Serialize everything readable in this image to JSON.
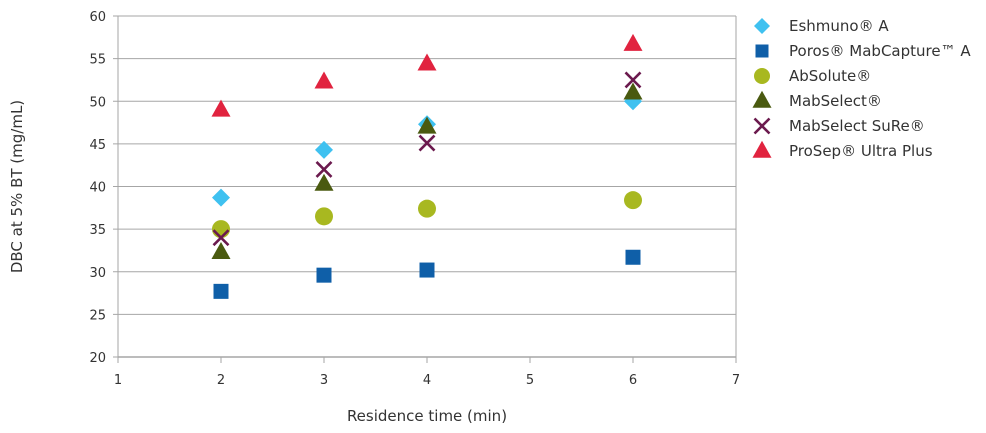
{
  "chart_data": {
    "type": "scatter",
    "xlabel": "Residence time (min)",
    "ylabel": "DBC at 5% BT (mg/mL)",
    "xlim": [
      1,
      7
    ],
    "ylim": [
      20,
      60
    ],
    "x_ticks": [
      "1",
      "2",
      "3",
      "4",
      "5",
      "6",
      "7"
    ],
    "y_ticks": [
      "20",
      "25",
      "30",
      "35",
      "40",
      "45",
      "50",
      "55",
      "60"
    ],
    "grid": "horizontal",
    "legend_position": "right",
    "series": [
      {
        "name": "Eshmuno® A",
        "marker": "diamond",
        "color": "#3fc1f0",
        "points": [
          [
            2,
            38.7
          ],
          [
            3,
            44.3
          ],
          [
            4,
            47.3
          ],
          [
            6,
            50.0
          ]
        ]
      },
      {
        "name": "Poros® MabCapture™ A",
        "marker": "square",
        "color": "#0f5fa8",
        "points": [
          [
            2,
            27.7
          ],
          [
            3,
            29.6
          ],
          [
            4,
            30.2
          ],
          [
            6,
            31.7
          ]
        ]
      },
      {
        "name": "AbSolute®",
        "marker": "circle",
        "color": "#a8b820",
        "points": [
          [
            2,
            35.0
          ],
          [
            3,
            36.5
          ],
          [
            4,
            37.4
          ],
          [
            6,
            38.4
          ]
        ]
      },
      {
        "name": "MabSelect®",
        "marker": "triangle",
        "color": "#4a5a10",
        "points": [
          [
            2,
            32.3
          ],
          [
            3,
            40.3
          ],
          [
            4,
            47.0
          ],
          [
            6,
            51.0
          ]
        ]
      },
      {
        "name": "MabSelect SuRe®",
        "marker": "x",
        "color": "#6b1a4e",
        "points": [
          [
            2,
            34.0
          ],
          [
            3,
            42.0
          ],
          [
            4,
            45.1
          ],
          [
            6,
            52.5
          ]
        ]
      },
      {
        "name": "ProSep® Ultra Plus",
        "marker": "triangle",
        "color": "#e1233f",
        "points": [
          [
            2,
            49.0
          ],
          [
            3,
            52.3
          ],
          [
            4,
            54.4
          ],
          [
            6,
            56.7
          ]
        ]
      }
    ]
  }
}
